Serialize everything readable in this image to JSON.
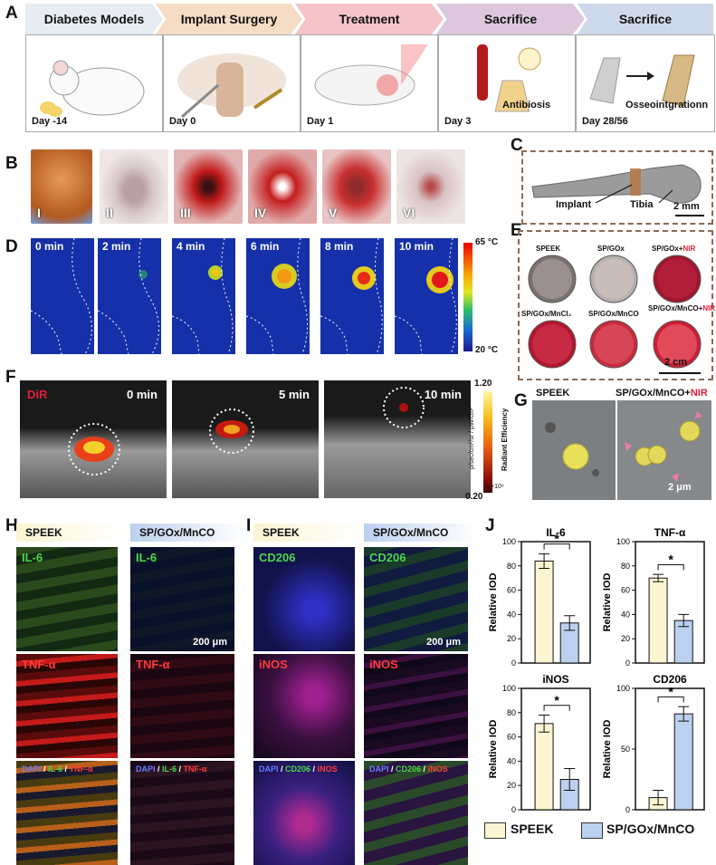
{
  "panels": {
    "A": "A",
    "B": "B",
    "C": "C",
    "D": "D",
    "E": "E",
    "F": "F",
    "G": "G",
    "H": "H",
    "I": "I",
    "J": "J"
  },
  "timeline": {
    "stages": [
      {
        "title": "Diabetes Models",
        "day": "Day -14",
        "color": "#e6ecf2"
      },
      {
        "title": "Implant Surgery",
        "day": "Day 0",
        "color": "#f6dcc4"
      },
      {
        "title": "Treatment",
        "day": "Day 1",
        "color": "#f4c4c8"
      },
      {
        "title": "Sacrifice",
        "day": "Day 3",
        "color": "#dcc7dc",
        "note": "Antibiosis"
      },
      {
        "title": "Sacrifice",
        "day": "Day 28/56",
        "color": "#cfd9ec",
        "note": "Osseointgrationn"
      }
    ]
  },
  "surgery": {
    "steps": [
      "I",
      "II",
      "III",
      "IV",
      "V",
      "VI"
    ]
  },
  "bone": {
    "implant": "Implant",
    "tibia": "Tibia",
    "scale": "2 mm"
  },
  "thermal": {
    "times": [
      "0 min",
      "2 min",
      "4 min",
      "6 min",
      "8 min",
      "10 min"
    ],
    "max": "65 °C",
    "min": "20 °C"
  },
  "dishes": {
    "labels": [
      {
        "main": "SPEEK",
        "nir": ""
      },
      {
        "main": "SP/GOx",
        "nir": ""
      },
      {
        "main": "SP/GOx+",
        "nir": "NIR"
      },
      {
        "main": "SP/GOx/MnCl₂",
        "nir": ""
      },
      {
        "main": "SP/GOx/MnCO",
        "nir": ""
      },
      {
        "main": "SP/GOx/MnCO+",
        "nir": "NIR"
      }
    ],
    "scale": "2 cm"
  },
  "fluor": {
    "dye": "DiR",
    "times": [
      "0 min",
      "5 min",
      "10 min"
    ],
    "max": "1.20",
    "min": "0.20",
    "exp": "×10⁹",
    "cb_label": "Radiant Efficiency",
    "cb_units1": "p/sec/cm²/sr",
    "cb_units2": "μW/cm²"
  },
  "sem": {
    "left": "SPEEK",
    "right_main": "SP/GOx/MnCO+",
    "right_nir": "NIR",
    "scale": "2 μm"
  },
  "groups": {
    "a": "SPEEK",
    "b": "SP/GOx/MnCO"
  },
  "stainH": {
    "row1": "IL-6",
    "row2": "TNF-α",
    "merge_dapi": "DAPI",
    "merge_sep": " / ",
    "merge_a": "IL-6",
    "merge_b": "TNF-α",
    "scale": "200 μm"
  },
  "stainI": {
    "row1": "CD206",
    "row2": "iNOS",
    "merge_dapi": "DAPI",
    "merge_sep": " / ",
    "merge_a": "CD206",
    "merge_b": "iNOS",
    "scale": "200 μm"
  },
  "colors": {
    "speek": "#fbf5d2",
    "mnco": "#bcd0ef"
  },
  "chart_data": [
    {
      "type": "bar",
      "title": "IL-6",
      "categories": [
        "SPEEK",
        "SP/GOx/MnCO"
      ],
      "values": [
        84,
        33
      ],
      "errors": [
        6,
        6
      ],
      "ylabel": "Relative IOD",
      "ylim": [
        0,
        100
      ],
      "yticks": [
        0,
        20,
        40,
        60,
        80,
        100
      ],
      "sig": "*"
    },
    {
      "type": "bar",
      "title": "TNF-α",
      "categories": [
        "SPEEK",
        "SP/GOx/MnCO"
      ],
      "values": [
        70,
        35
      ],
      "errors": [
        3,
        5
      ],
      "ylabel": "Relative IOD",
      "ylim": [
        0,
        100
      ],
      "yticks": [
        0,
        20,
        40,
        60,
        80,
        100
      ],
      "sig": "*"
    },
    {
      "type": "bar",
      "title": "iNOS",
      "categories": [
        "SPEEK",
        "SP/GOx/MnCO"
      ],
      "values": [
        71,
        25
      ],
      "errors": [
        7,
        9
      ],
      "ylabel": "Relative IOD",
      "ylim": [
        0,
        100
      ],
      "yticks": [
        0,
        20,
        40,
        60,
        80,
        100
      ],
      "sig": "*"
    },
    {
      "type": "bar",
      "title": "CD206",
      "categories": [
        "SPEEK",
        "SP/GOx/MnCO"
      ],
      "values": [
        10,
        79
      ],
      "errors": [
        6,
        6
      ],
      "ylabel": "Relative IOD",
      "ylim": [
        0,
        100
      ],
      "yticks": [
        0,
        50,
        100
      ],
      "sig": "*"
    }
  ]
}
